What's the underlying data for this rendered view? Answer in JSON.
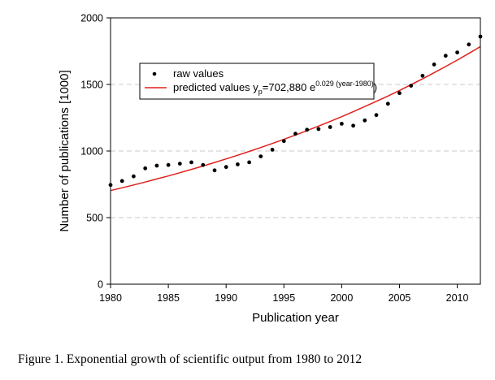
{
  "caption": "Figure 1. Exponential growth of scientific output from 1980 to 2012",
  "chart_data": {
    "type": "scatter",
    "xlabel": "Publication year",
    "ylabel": "Number of publications [1000]",
    "xlim": [
      1980,
      2012
    ],
    "ylim": [
      0,
      2000
    ],
    "xticks": [
      1980,
      1985,
      1990,
      1995,
      2000,
      2005,
      2010
    ],
    "yticks": [
      0,
      500,
      1000,
      1500,
      2000
    ],
    "gridlines": [
      500,
      1000,
      1500
    ],
    "grid": "horizontal dashed",
    "legend_position": "upper-left",
    "legend": {
      "raw": "raw values",
      "pred_prefix": "predicted values y",
      "pred_sub": "p",
      "pred_eq": "=702,880 e",
      "pred_sup": "0.029 (year-1980)",
      "pred_suffix": ")"
    },
    "series": [
      {
        "name": "raw values",
        "kind": "points",
        "color": "#000000",
        "x": [
          1980,
          1981,
          1982,
          1983,
          1984,
          1985,
          1986,
          1987,
          1988,
          1989,
          1990,
          1991,
          1992,
          1993,
          1994,
          1995,
          1996,
          1997,
          1998,
          1999,
          2000,
          2001,
          2002,
          2003,
          2004,
          2005,
          2006,
          2007,
          2008,
          2009,
          2010,
          2011,
          2012
        ],
        "y": [
          745,
          775,
          810,
          870,
          890,
          895,
          905,
          915,
          895,
          855,
          880,
          900,
          915,
          960,
          1010,
          1075,
          1130,
          1160,
          1165,
          1180,
          1205,
          1190,
          1230,
          1270,
          1355,
          1435,
          1490,
          1565,
          1650,
          1715,
          1740,
          1800,
          1860
        ]
      },
      {
        "name": "predicted values",
        "kind": "line",
        "color": "#e0201c",
        "x": [
          1980,
          1981,
          1982,
          1983,
          1984,
          1985,
          1986,
          1987,
          1988,
          1989,
          1990,
          1991,
          1992,
          1993,
          1994,
          1995,
          1996,
          1997,
          1998,
          1999,
          2000,
          2001,
          2002,
          2003,
          2004,
          2005,
          2006,
          2007,
          2008,
          2009,
          2010,
          2011,
          2012
        ],
        "y": [
          703,
          724,
          745,
          767,
          790,
          813,
          837,
          862,
          887,
          914,
          941,
          968,
          997,
          1026,
          1057,
          1088,
          1120,
          1153,
          1187,
          1222,
          1258,
          1295,
          1334,
          1373,
          1413,
          1455,
          1498,
          1542,
          1588,
          1635,
          1683,
          1733,
          1784
        ]
      }
    ]
  }
}
